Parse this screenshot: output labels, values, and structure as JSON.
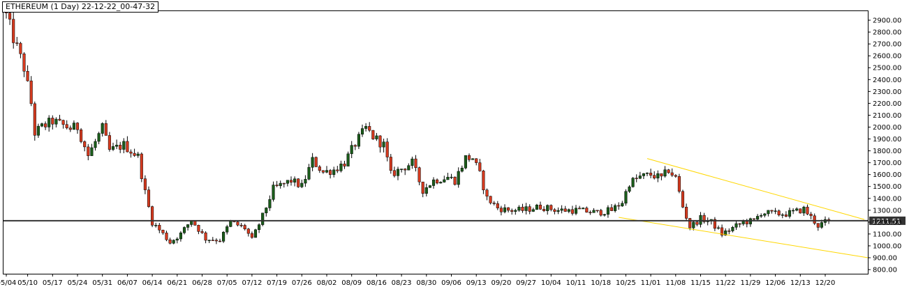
{
  "header": {
    "title": "ETHEREUM (1 Day) 22-12-22_00-47-32"
  },
  "colors": {
    "background": "#ffffff",
    "up_candle": "#1a5c1a",
    "down_candle": "#d63a1f",
    "wick": "#000000",
    "trendline": "#ffd700",
    "horizontal_line": "#333333",
    "price_tag_bg": "#333333",
    "price_tag_text": "#ffffff"
  },
  "chart_data": {
    "type": "candlestick",
    "title": "ETHEREUM (1 Day) 22-12-22_00-47-32",
    "xlabel": "",
    "ylabel": "",
    "ylim": [
      750,
      3000
    ],
    "grid": false,
    "y_ticks": [
      "800.00",
      "900.00",
      "1000.00",
      "1100.00",
      "1200.00",
      "1300.00",
      "1400.00",
      "1500.00",
      "1600.00",
      "1700.00",
      "1800.00",
      "1900.00",
      "2000.00",
      "2100.00",
      "2200.00",
      "2300.00",
      "2400.00",
      "2500.00",
      "2600.00",
      "2700.00",
      "2800.00",
      "2900.00"
    ],
    "x_ticks": [
      {
        "day": 0,
        "label": "05/04"
      },
      {
        "day": 6,
        "label": "05/10"
      },
      {
        "day": 13,
        "label": "05/17"
      },
      {
        "day": 20,
        "label": "05/24"
      },
      {
        "day": 27,
        "label": "05/31"
      },
      {
        "day": 34,
        "label": "06/07"
      },
      {
        "day": 41,
        "label": "06/14"
      },
      {
        "day": 48,
        "label": "06/21"
      },
      {
        "day": 55,
        "label": "06/28"
      },
      {
        "day": 62,
        "label": "07/05"
      },
      {
        "day": 69,
        "label": "07/12"
      },
      {
        "day": 76,
        "label": "07/19"
      },
      {
        "day": 83,
        "label": "07/26"
      },
      {
        "day": 90,
        "label": "08/02"
      },
      {
        "day": 97,
        "label": "08/09"
      },
      {
        "day": 104,
        "label": "08/16"
      },
      {
        "day": 111,
        "label": "08/23"
      },
      {
        "day": 118,
        "label": "08/30"
      },
      {
        "day": 125,
        "label": "09/06"
      },
      {
        "day": 132,
        "label": "09/13"
      },
      {
        "day": 139,
        "label": "09/20"
      },
      {
        "day": 146,
        "label": "09/27"
      },
      {
        "day": 153,
        "label": "10/04"
      },
      {
        "day": 160,
        "label": "10/11"
      },
      {
        "day": 167,
        "label": "10/18"
      },
      {
        "day": 174,
        "label": "10/25"
      },
      {
        "day": 181,
        "label": "11/01"
      },
      {
        "day": 188,
        "label": "11/08"
      },
      {
        "day": 195,
        "label": "11/15"
      },
      {
        "day": 202,
        "label": "11/22"
      },
      {
        "day": 209,
        "label": "11/29"
      },
      {
        "day": 216,
        "label": "12/06"
      },
      {
        "day": 223,
        "label": "12/13"
      },
      {
        "day": 230,
        "label": "12/20"
      }
    ],
    "price_keypoints": [
      {
        "day": 0,
        "price": 2940
      },
      {
        "day": 2,
        "price": 2750
      },
      {
        "day": 5,
        "price": 2500
      },
      {
        "day": 7,
        "price": 2200
      },
      {
        "day": 8,
        "price": 1950
      },
      {
        "day": 10,
        "price": 2000
      },
      {
        "day": 13,
        "price": 2050
      },
      {
        "day": 18,
        "price": 1990
      },
      {
        "day": 20,
        "price": 2000
      },
      {
        "day": 23,
        "price": 1760
      },
      {
        "day": 27,
        "price": 1990
      },
      {
        "day": 29,
        "price": 1800
      },
      {
        "day": 33,
        "price": 1850
      },
      {
        "day": 37,
        "price": 1750
      },
      {
        "day": 39,
        "price": 1450
      },
      {
        "day": 41,
        "price": 1200
      },
      {
        "day": 44,
        "price": 1100
      },
      {
        "day": 46,
        "price": 1030
      },
      {
        "day": 49,
        "price": 1100
      },
      {
        "day": 52,
        "price": 1220
      },
      {
        "day": 56,
        "price": 1060
      },
      {
        "day": 60,
        "price": 1050
      },
      {
        "day": 63,
        "price": 1200
      },
      {
        "day": 67,
        "price": 1150
      },
      {
        "day": 69,
        "price": 1050
      },
      {
        "day": 72,
        "price": 1250
      },
      {
        "day": 75,
        "price": 1480
      },
      {
        "day": 80,
        "price": 1550
      },
      {
        "day": 83,
        "price": 1500
      },
      {
        "day": 86,
        "price": 1720
      },
      {
        "day": 89,
        "price": 1620
      },
      {
        "day": 92,
        "price": 1640
      },
      {
        "day": 95,
        "price": 1700
      },
      {
        "day": 98,
        "price": 1860
      },
      {
        "day": 101,
        "price": 1990
      },
      {
        "day": 103,
        "price": 1920
      },
      {
        "day": 106,
        "price": 1850
      },
      {
        "day": 108,
        "price": 1600
      },
      {
        "day": 111,
        "price": 1650
      },
      {
        "day": 114,
        "price": 1700
      },
      {
        "day": 117,
        "price": 1470
      },
      {
        "day": 120,
        "price": 1550
      },
      {
        "day": 124,
        "price": 1580
      },
      {
        "day": 126,
        "price": 1550
      },
      {
        "day": 129,
        "price": 1740
      },
      {
        "day": 131,
        "price": 1740
      },
      {
        "day": 133,
        "price": 1600
      },
      {
        "day": 135,
        "price": 1400
      },
      {
        "day": 138,
        "price": 1320
      },
      {
        "day": 141,
        "price": 1300
      },
      {
        "day": 145,
        "price": 1300
      },
      {
        "day": 150,
        "price": 1330
      },
      {
        "day": 155,
        "price": 1300
      },
      {
        "day": 160,
        "price": 1300
      },
      {
        "day": 166,
        "price": 1280
      },
      {
        "day": 170,
        "price": 1300
      },
      {
        "day": 173,
        "price": 1370
      },
      {
        "day": 175,
        "price": 1530
      },
      {
        "day": 178,
        "price": 1580
      },
      {
        "day": 181,
        "price": 1600
      },
      {
        "day": 184,
        "price": 1570
      },
      {
        "day": 186,
        "price": 1640
      },
      {
        "day": 188,
        "price": 1570
      },
      {
        "day": 190,
        "price": 1330
      },
      {
        "day": 192,
        "price": 1160
      },
      {
        "day": 195,
        "price": 1230
      },
      {
        "day": 198,
        "price": 1200
      },
      {
        "day": 201,
        "price": 1100
      },
      {
        "day": 204,
        "price": 1150
      },
      {
        "day": 207,
        "price": 1200
      },
      {
        "day": 210,
        "price": 1210
      },
      {
        "day": 212,
        "price": 1280
      },
      {
        "day": 216,
        "price": 1270
      },
      {
        "day": 219,
        "price": 1270
      },
      {
        "day": 222,
        "price": 1290
      },
      {
        "day": 224,
        "price": 1310
      },
      {
        "day": 226,
        "price": 1240
      },
      {
        "day": 228,
        "price": 1170
      },
      {
        "day": 231,
        "price": 1215
      }
    ],
    "horizontal_line": {
      "price": 1211.51,
      "label": "1211.51"
    },
    "trendlines": [
      {
        "from": {
          "day": 180,
          "price": 1735
        },
        "to": {
          "day": 241,
          "price": 1222
        }
      },
      {
        "from": {
          "day": 172,
          "price": 1240
        },
        "to": {
          "day": 242,
          "price": 900
        }
      }
    ]
  }
}
